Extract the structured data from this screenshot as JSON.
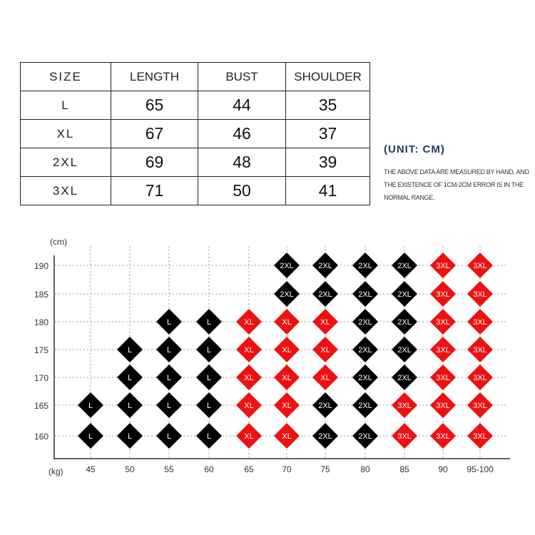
{
  "size_table": {
    "headers": [
      "SIZE",
      "LENGTH",
      "BUST",
      "SHOULDER"
    ],
    "rows": [
      [
        "L",
        "65",
        "44",
        "35"
      ],
      [
        "XL",
        "67",
        "46",
        "37"
      ],
      [
        "2XL",
        "69",
        "48",
        "39"
      ],
      [
        "3XL",
        "71",
        "50",
        "41"
      ]
    ]
  },
  "unit_label": "(UNIT:  CM)",
  "note": "THE ABOVE DATA ARE MEASURED BY HAND, AND THE EXISTENCE OF 1CM-2CM ERROR IS IN THE NORMAL RANGE.",
  "size_chart": {
    "y_unit": "(cm)",
    "x_unit": "(kg)",
    "x_labels": [
      "45",
      "50",
      "55",
      "60",
      "65",
      "70",
      "75",
      "80",
      "85",
      "90",
      "95-100"
    ],
    "y_labels": [
      "190",
      "185",
      "180",
      "175",
      "170",
      "165",
      "160"
    ],
    "grid": [
      [
        "",
        "",
        "",
        "",
        "",
        "2XL",
        "2XL",
        "2XL",
        "2XL",
        "3XL",
        "3XL"
      ],
      [
        "",
        "",
        "",
        "",
        "",
        "2XL",
        "2XL",
        "2XL",
        "2XL",
        "3XL",
        "3XL"
      ],
      [
        "",
        "",
        "L",
        "L",
        "XL",
        "XL",
        "XL",
        "2XL",
        "2XL",
        "3XL",
        "3XL"
      ],
      [
        "",
        "L",
        "L",
        "L",
        "XL",
        "XL",
        "XL",
        "2XL",
        "2XL",
        "3XL",
        "3XL"
      ],
      [
        "",
        "L",
        "L",
        "L",
        "XL",
        "XL",
        "XL",
        "2XL",
        "2XL",
        "3XL",
        "3XL"
      ],
      [
        "L",
        "L",
        "L",
        "L",
        "XL",
        "XL",
        "2XL",
        "2XL",
        "3XL",
        "3XL",
        "3XL"
      ],
      [
        "L",
        "L",
        "L",
        "L",
        "XL",
        "XL",
        "2XL",
        "2XL",
        "3XL",
        "3XL",
        "3XL"
      ]
    ],
    "size_colors": {
      "L": "#000000",
      "XL": "#ee1111",
      "2XL": "#000000",
      "3XL": "#ee1111"
    }
  }
}
